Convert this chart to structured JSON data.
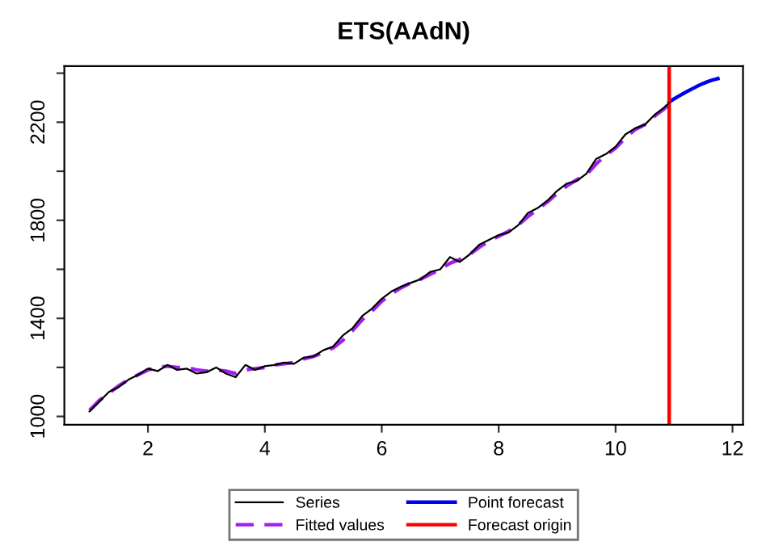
{
  "chart_data": {
    "type": "line",
    "title": "ETS(AAdN)",
    "xlim": [
      0.57,
      12.18
    ],
    "ylim": [
      966,
      2429
    ],
    "xticks": [
      2,
      4,
      6,
      8,
      10,
      12
    ],
    "yticks": [
      1000,
      {
        "value": 1200,
        "label": null
      },
      1400,
      {
        "value": 1600,
        "label": null
      },
      1800,
      {
        "value": 2000,
        "label": null
      },
      2200,
      {
        "value": 2400,
        "label": null
      }
    ],
    "grid": false,
    "legend": "bottom",
    "series": [
      {
        "name": "Series",
        "color": "#000000",
        "line_style": "solid",
        "x": [
          1.0,
          1.167,
          1.333,
          1.5,
          1.667,
          1.833,
          2.0,
          2.167,
          2.333,
          2.5,
          2.667,
          2.833,
          3.0,
          3.167,
          3.333,
          3.5,
          3.667,
          3.833,
          4.0,
          4.167,
          4.333,
          4.5,
          4.667,
          4.833,
          5.0,
          5.167,
          5.333,
          5.5,
          5.667,
          5.833,
          6.0,
          6.167,
          6.333,
          6.5,
          6.667,
          6.833,
          7.0,
          7.167,
          7.333,
          7.5,
          7.667,
          7.833,
          8.0,
          8.167,
          8.333,
          8.5,
          8.667,
          8.833,
          9.0,
          9.167,
          9.333,
          9.5,
          9.667,
          9.833,
          10.0,
          10.167,
          10.333,
          10.5,
          10.667,
          10.833,
          10.917
        ],
        "values": [
          1020,
          1060,
          1100,
          1120,
          1150,
          1170,
          1195,
          1185,
          1210,
          1190,
          1195,
          1175,
          1180,
          1200,
          1175,
          1160,
          1210,
          1190,
          1205,
          1210,
          1220,
          1215,
          1240,
          1245,
          1270,
          1285,
          1330,
          1360,
          1410,
          1440,
          1480,
          1510,
          1530,
          1545,
          1560,
          1590,
          1600,
          1650,
          1630,
          1660,
          1700,
          1720,
          1740,
          1750,
          1780,
          1830,
          1850,
          1880,
          1920,
          1950,
          1960,
          1990,
          2050,
          2070,
          2100,
          2150,
          2175,
          2190,
          2230,
          2260,
          2279
        ]
      },
      {
        "name": "Fitted values",
        "color": "#a020f0",
        "line_style": "dashed",
        "x": [
          1.0,
          1.167,
          1.333,
          1.5,
          1.667,
          1.833,
          2.0,
          2.167,
          2.333,
          2.5,
          2.667,
          2.833,
          3.0,
          3.167,
          3.333,
          3.5,
          3.667,
          3.833,
          4.0,
          4.167,
          4.333,
          4.5,
          4.667,
          4.833,
          5.0,
          5.167,
          5.333,
          5.5,
          5.667,
          5.833,
          6.0,
          6.167,
          6.333,
          6.5,
          6.667,
          6.833,
          7.0,
          7.167,
          7.333,
          7.5,
          7.667,
          7.833,
          8.0,
          8.167,
          8.333,
          8.5,
          8.667,
          8.833,
          9.0,
          9.167,
          9.333,
          9.5,
          9.667,
          9.833,
          10.0,
          10.167,
          10.333,
          10.5,
          10.667,
          10.833,
          10.917
        ],
        "values": [
          1025,
          1065,
          1095,
          1125,
          1150,
          1170,
          1190,
          1200,
          1205,
          1200,
          1200,
          1190,
          1185,
          1190,
          1185,
          1175,
          1190,
          1195,
          1200,
          1210,
          1215,
          1220,
          1235,
          1245,
          1260,
          1280,
          1310,
          1350,
          1395,
          1430,
          1470,
          1500,
          1525,
          1545,
          1560,
          1580,
          1600,
          1625,
          1640,
          1660,
          1690,
          1715,
          1735,
          1755,
          1780,
          1815,
          1845,
          1875,
          1910,
          1940,
          1965,
          1985,
          2030,
          2065,
          2095,
          2135,
          2170,
          2190,
          2225,
          2255,
          2275
        ]
      },
      {
        "name": "Point forecast",
        "color": "#0000ee",
        "line_style": "solid",
        "x": [
          10.917,
          11.0,
          11.083,
          11.167,
          11.25,
          11.333,
          11.417,
          11.5,
          11.583,
          11.667,
          11.75
        ],
        "values": [
          2282,
          2295,
          2307,
          2318,
          2329,
          2339,
          2349,
          2358,
          2366,
          2373,
          2378
        ]
      }
    ],
    "ref_lines": [
      {
        "axis": "x",
        "value": 10.917,
        "label": "Forecast origin",
        "color": "#ff0000",
        "line_style": "solid"
      }
    ]
  }
}
